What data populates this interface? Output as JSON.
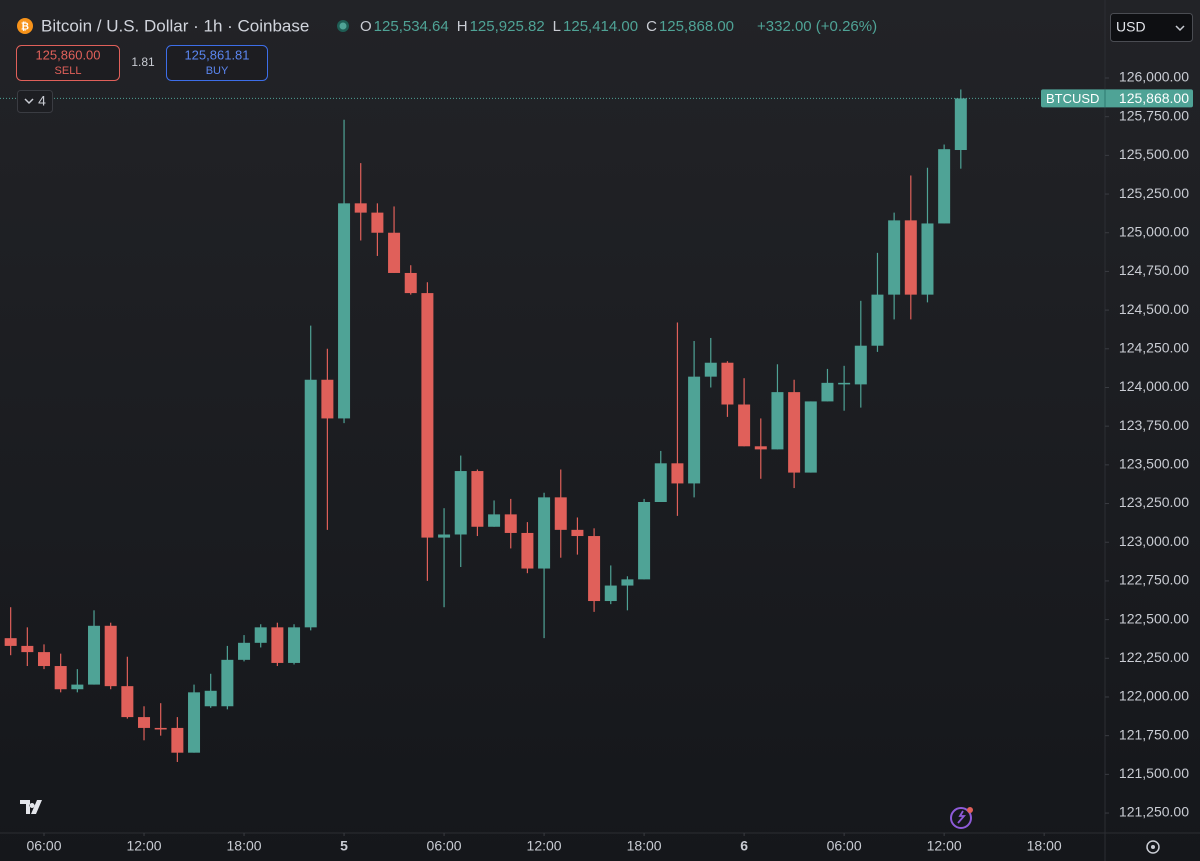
{
  "header": {
    "symbol": "Bitcoin / U.S. Dollar · 1h · Coinbase",
    "ohlc": [
      {
        "label": "O",
        "value": "125,534.64"
      },
      {
        "label": "H",
        "value": "125,925.82"
      },
      {
        "label": "L",
        "value": "125,414.00"
      },
      {
        "label": "C",
        "value": "125,868.00"
      }
    ],
    "change": "+332.00 (+0.26%)"
  },
  "trade": {
    "sell_price": "125,860.00",
    "sell_label": "SELL",
    "spread": "1.81",
    "buy_price": "125,861.81",
    "buy_label": "BUY"
  },
  "indicators_count": "4",
  "currency": "USD",
  "chart_data": {
    "type": "candlestick",
    "up_color": "#4fa396",
    "down_color": "#e0605a",
    "grid": false,
    "last_price_label": {
      "symbol": "BTCUSD",
      "price": "125,868.00"
    },
    "open": [
      122380,
      122330,
      122290,
      122200,
      122050,
      122080,
      122460,
      122070,
      121870,
      121800,
      121800,
      121640,
      121940,
      121940,
      122240,
      122350,
      122450,
      122220,
      122450,
      124050,
      123800,
      125190,
      125130,
      125000,
      124740,
      124610,
      123030,
      123050,
      123460,
      123100,
      123180,
      123060,
      122830,
      123290,
      123080,
      123040,
      122620,
      122720,
      122760,
      123260,
      123510,
      123380,
      124070,
      124160,
      123890,
      123620,
      123600,
      123970,
      123450,
      123910,
      124020,
      124020,
      124270,
      124600,
      125080,
      124600,
      125060,
      125534.64
    ],
    "high": [
      122580,
      122450,
      122340,
      122280,
      122180,
      122560,
      122480,
      122260,
      121940,
      121960,
      121870,
      122080,
      122150,
      122330,
      122400,
      122470,
      122480,
      122470,
      124400,
      124250,
      125730,
      125450,
      125190,
      125170,
      124790,
      124680,
      123220,
      123560,
      123470,
      123270,
      123280,
      123130,
      123320,
      123470,
      123160,
      123090,
      122850,
      122780,
      123280,
      123590,
      124420,
      124300,
      124320,
      124170,
      124060,
      123800,
      124150,
      124050,
      123910,
      124120,
      124140,
      124560,
      124870,
      125130,
      125370,
      125420,
      125570,
      125925.82
    ],
    "low": [
      122270,
      122200,
      122180,
      122030,
      122030,
      122080,
      122050,
      121860,
      121720,
      121750,
      121580,
      121640,
      121930,
      121920,
      122230,
      122320,
      122200,
      122210,
      122430,
      123080,
      123770,
      124950,
      124850,
      124740,
      124600,
      122750,
      122580,
      122840,
      123040,
      123100,
      122960,
      122800,
      122380,
      122900,
      122920,
      122550,
      122600,
      122560,
      122760,
      123260,
      123170,
      123290,
      124000,
      123810,
      123620,
      123410,
      123600,
      123350,
      123450,
      123910,
      123850,
      123870,
      124230,
      124440,
      124440,
      124550,
      125060,
      125414
    ],
    "close": [
      122330,
      122290,
      122200,
      122050,
      122080,
      122460,
      122070,
      121870,
      121800,
      121790,
      121640,
      122030,
      122040,
      122240,
      122350,
      122450,
      122220,
      122450,
      124050,
      123800,
      125190,
      125130,
      125000,
      124740,
      124610,
      123030,
      123050,
      123460,
      123100,
      123180,
      123060,
      122830,
      123290,
      123080,
      123040,
      122620,
      122720,
      122760,
      123260,
      123510,
      123380,
      124070,
      124160,
      123890,
      123620,
      123600,
      123970,
      123450,
      123910,
      124030,
      124030,
      124270,
      124600,
      125080,
      124600,
      125060,
      125540,
      125868
    ],
    "ylim": [
      121121,
      126504
    ],
    "yticks": [
      {
        "value": 121250,
        "label": "121,250.00"
      },
      {
        "value": 121500,
        "label": "121,500.00"
      },
      {
        "value": 121750,
        "label": "121,750.00"
      },
      {
        "value": 122000,
        "label": "122,000.00"
      },
      {
        "value": 122250,
        "label": "122,250.00"
      },
      {
        "value": 122500,
        "label": "122,500.00"
      },
      {
        "value": 122750,
        "label": "122,750.00"
      },
      {
        "value": 123000,
        "label": "123,000.00"
      },
      {
        "value": 123250,
        "label": "123,250.00"
      },
      {
        "value": 123500,
        "label": "123,500.00"
      },
      {
        "value": 123750,
        "label": "123,750.00"
      },
      {
        "value": 124000,
        "label": "124,000.00"
      },
      {
        "value": 124250,
        "label": "124,250.00"
      },
      {
        "value": 124500,
        "label": "124,500.00"
      },
      {
        "value": 124750,
        "label": "124,750.00"
      },
      {
        "value": 125000,
        "label": "125,000.00"
      },
      {
        "value": 125250,
        "label": "125,250.00"
      },
      {
        "value": 125500,
        "label": "125,500.00"
      },
      {
        "value": 125750,
        "label": "125,750.00"
      },
      {
        "value": 126000,
        "label": "126,000.00"
      }
    ],
    "xlim": [
      -0.64,
      65.65
    ],
    "xticks": [
      {
        "value": 2,
        "label": "06:00"
      },
      {
        "value": 8,
        "label": "12:00"
      },
      {
        "value": 14,
        "label": "18:00"
      },
      {
        "value": 20,
        "label": "5"
      },
      {
        "value": 26,
        "label": "06:00"
      },
      {
        "value": 32,
        "label": "12:00"
      },
      {
        "value": 38,
        "label": "18:00"
      },
      {
        "value": 44,
        "label": "6"
      },
      {
        "value": 50,
        "label": "06:00"
      },
      {
        "value": 56,
        "label": "12:00"
      },
      {
        "value": 62,
        "label": "18:00"
      }
    ]
  }
}
